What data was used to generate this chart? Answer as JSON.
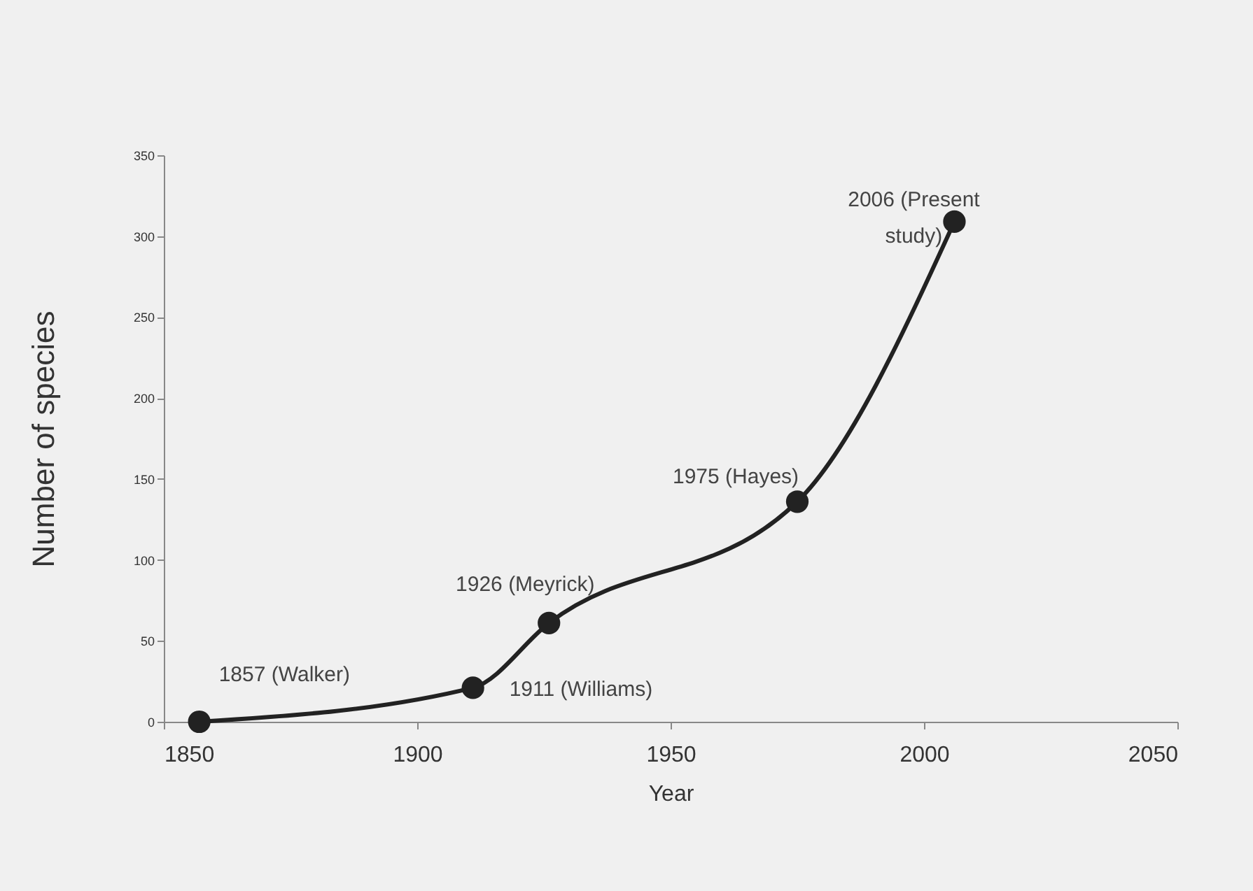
{
  "chart_data": {
    "type": "line",
    "xlabel": "Year",
    "ylabel": "Number of species",
    "x": [
      1857,
      1911,
      1926,
      1975,
      2006
    ],
    "series": [
      {
        "color": "#222222",
        "values": [
          0,
          21,
          61,
          136,
          309
        ]
      }
    ],
    "xlim": [
      1850,
      2050
    ],
    "xticks": [
      1850,
      1900,
      1950,
      2000,
      2050
    ],
    "ylim": [
      0,
      350
    ],
    "yticks": [
      0,
      50,
      100,
      150,
      200,
      250,
      300,
      350
    ],
    "grid": false,
    "marker": "circle",
    "line_style": "solid",
    "annotations": [
      {
        "text": "1857 (Walker)",
        "x": 1857,
        "y": 0
      },
      {
        "text": "1911 (Williams)",
        "x": 1911,
        "y": 21
      },
      {
        "text": "1926 (Meyrick)",
        "x": 1926,
        "y": 61
      },
      {
        "text": "1975 (Hayes)",
        "x": 1975,
        "y": 136
      },
      {
        "text": "2006 (Present study)",
        "x": 2006,
        "y": 309
      }
    ]
  }
}
